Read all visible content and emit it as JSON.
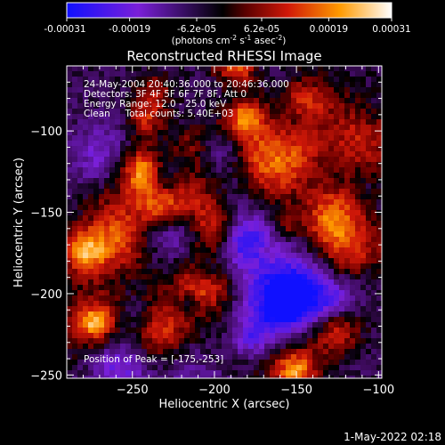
{
  "colorbar": {
    "tick_labels": [
      "-0.00031",
      "-0.00019",
      "-6.2e-05",
      "6.2e-05",
      "0.00019",
      "0.00031"
    ],
    "tick_values": [
      -0.00031,
      -0.00019,
      -6.2e-05,
      6.2e-05,
      0.00019,
      0.00031
    ],
    "range": [
      -0.00031,
      0.00031
    ],
    "units_prefix": "(photons cm",
    "units_exp1": "-2",
    "units_mid": " s",
    "units_exp2": "-1",
    "units_mid2": " asec",
    "units_exp3": "-2",
    "units_suffix": ")",
    "colors": [
      "#1010ff",
      "#7a1fd8",
      "#000000",
      "#d01808",
      "#ff9a00",
      "#ffffff"
    ]
  },
  "chart_data": {
    "type": "heatmap",
    "title": "Reconstructed RHESSI Image",
    "xlabel": "Heliocentric X (arcsec)",
    "ylabel": "Heliocentric Y (arcsec)",
    "xlim": [
      -290,
      -98
    ],
    "ylim": [
      -252,
      -60
    ],
    "x_ticks": [
      -250,
      -200,
      -150,
      -100
    ],
    "x_tick_labels": [
      "−250",
      "−200",
      "−150",
      "−100"
    ],
    "y_ticks": [
      -250,
      -200,
      -150,
      -100
    ],
    "y_tick_labels": [
      "−250",
      "−200",
      "−150",
      "−100"
    ],
    "annotations": [
      "24-May-2004 20:40:36.000 to 20:46:36.000",
      "Detectors: 3F 4F 5F 6F 7F 8F, Att 0",
      "Energy Range: 12.0 - 25.0 keV",
      "Clean     Total counts: 5.40E+03"
    ],
    "peak_label": "Position of Peak = [-175,-253]",
    "peak_position": [
      -175,
      -253
    ],
    "grid": false
  },
  "footer": {
    "timestamp": "1-May-2022 02:18"
  }
}
